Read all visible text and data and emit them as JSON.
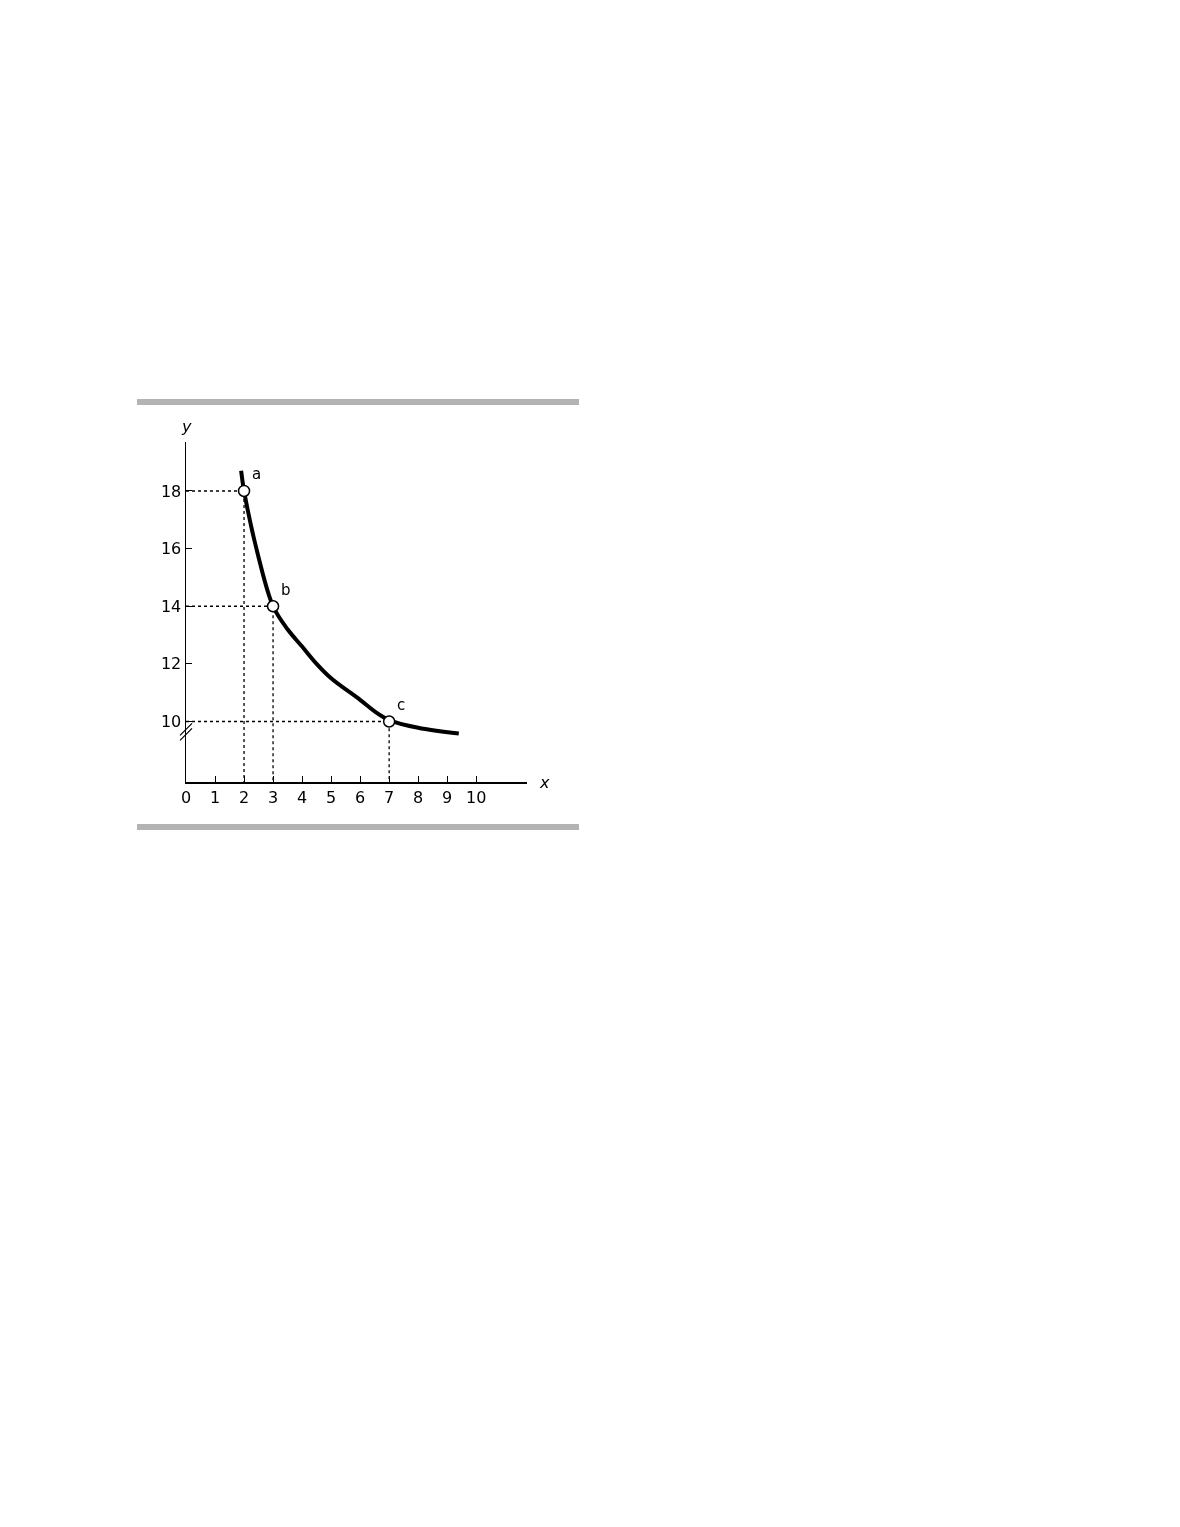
{
  "chart_data": {
    "type": "line",
    "xlabel": "x",
    "ylabel": "y",
    "xlim": [
      0,
      11.75
    ],
    "ylim": [
      7.9,
      19.7
    ],
    "xticks": [
      0,
      1,
      2,
      3,
      4,
      5,
      6,
      7,
      8,
      9,
      10
    ],
    "yticks": [
      10,
      12,
      14,
      16,
      18
    ],
    "grid": false,
    "series": [
      {
        "color": "#000000",
        "line_style": "dotted",
        "marker": "none",
        "x": [
          0,
          2,
          2
        ],
        "values": [
          18,
          18,
          7.9
        ]
      },
      {
        "color": "#000000",
        "line_style": "dotted",
        "marker": "none",
        "x": [
          0,
          3,
          3
        ],
        "values": [
          14,
          14,
          7.9
        ]
      },
      {
        "color": "#000000",
        "line_style": "dotted",
        "marker": "none",
        "x": [
          0,
          7,
          7
        ],
        "values": [
          10,
          10,
          7.9
        ]
      },
      {
        "color": "#000000",
        "line_style": "solid",
        "marker": "none",
        "x": [
          1.9,
          2,
          2.5,
          3,
          3.5,
          4,
          4.5,
          5,
          6,
          6.5,
          7,
          8,
          9.4
        ],
        "values": [
          18.7,
          18,
          15.7,
          14,
          13.2,
          12.6,
          12,
          11.5,
          10.75,
          10.35,
          10.05,
          9.78,
          9.58
        ]
      },
      {
        "type": "scatter",
        "color": "#000000",
        "marker": "circle",
        "x": [
          2,
          3,
          7
        ],
        "values": [
          18,
          14,
          10
        ],
        "value_labels": [
          "a",
          "b",
          "c"
        ]
      }
    ]
  }
}
